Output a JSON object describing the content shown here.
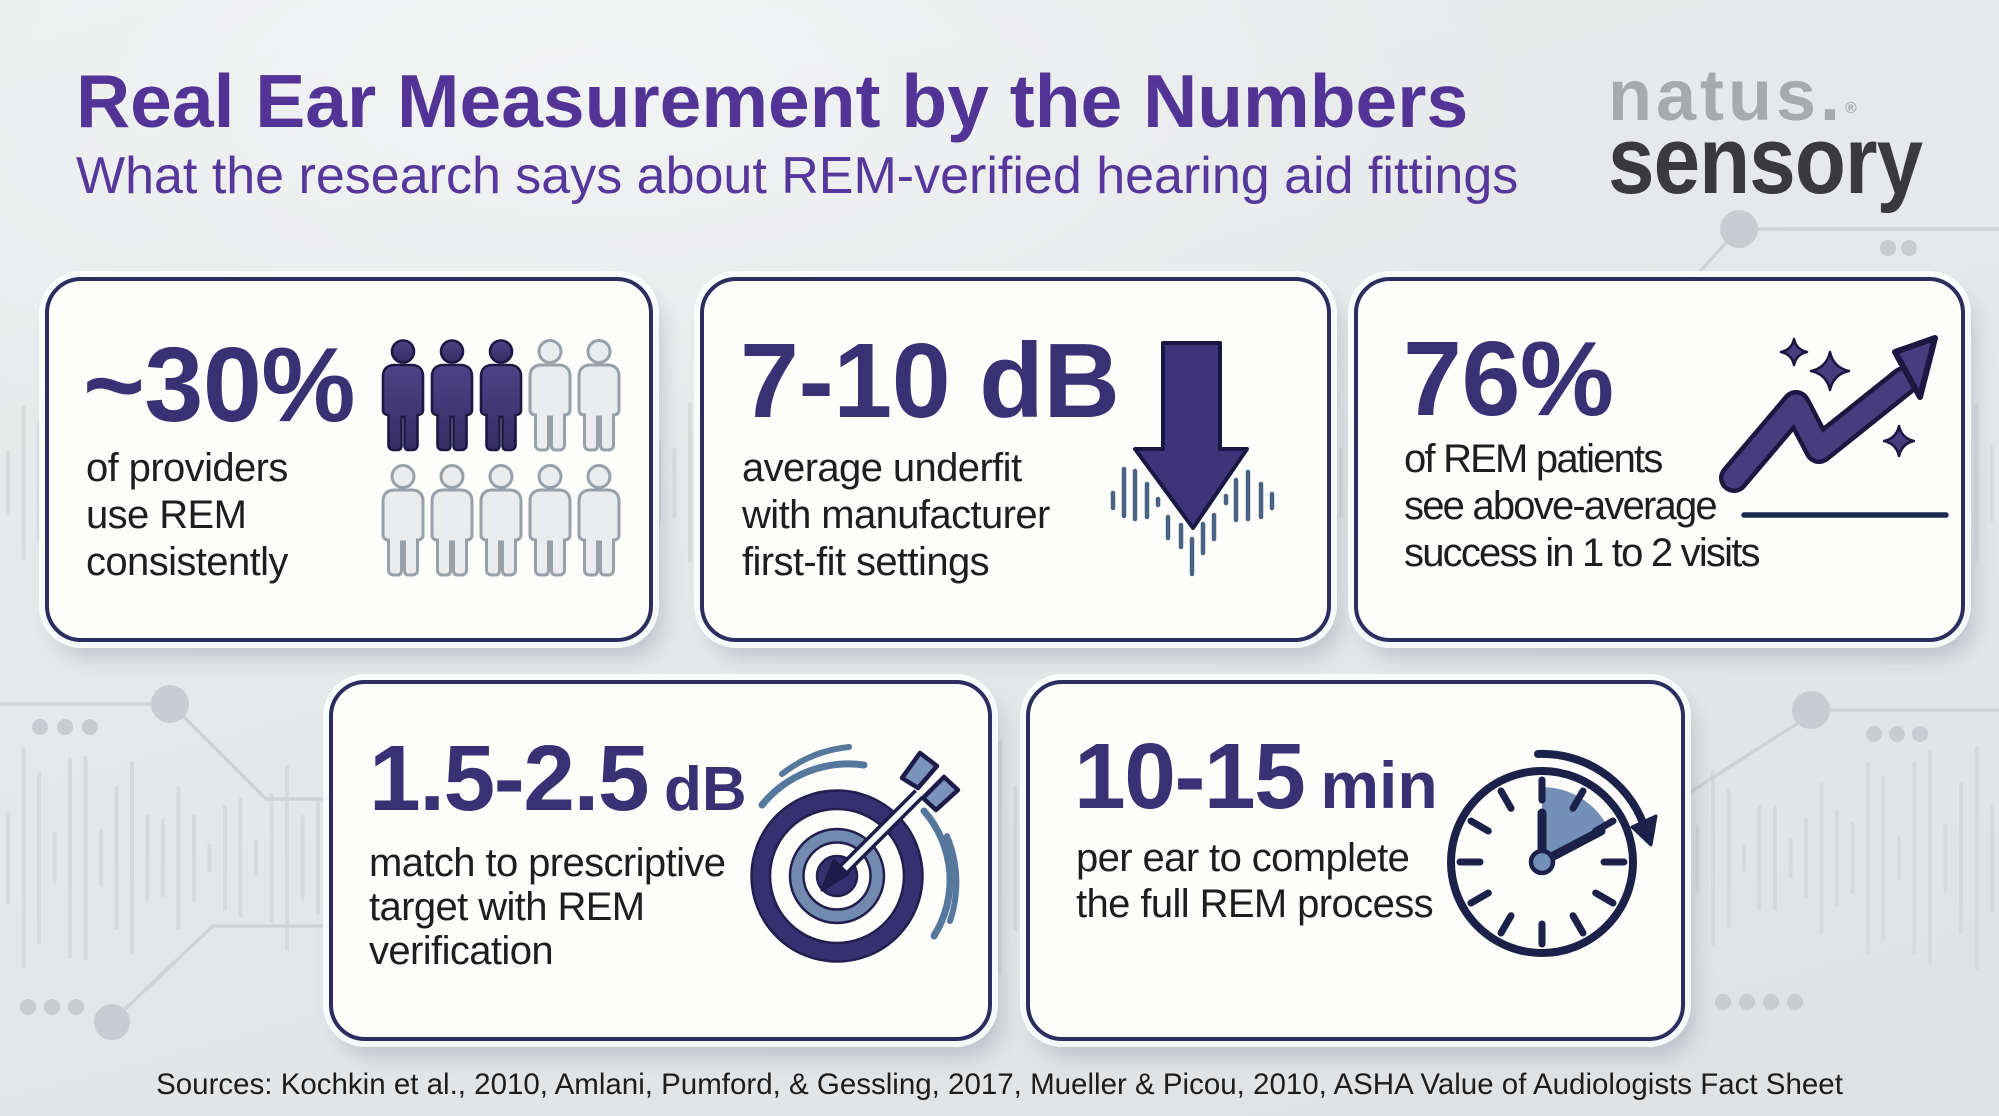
{
  "header": {
    "title": "Real Ear Measurement by the Numbers",
    "subtitle": "What the research says about REM-verified hearing aid fittings"
  },
  "logo": {
    "name": "natus.",
    "registered": "®",
    "division": "sensory"
  },
  "cards": [
    {
      "id": "providers",
      "value": "~30%",
      "unit": "",
      "description": "of providers\nuse REM\nconsistently",
      "icon": "people-grid",
      "people": {
        "total": 10,
        "filled": 3,
        "per_row": 5
      }
    },
    {
      "id": "underfit",
      "value": "7-10 dB",
      "unit": "",
      "description": "average underfit\nwith manufacturer\nfirst-fit settings",
      "icon": "down-arrow-soundwave"
    },
    {
      "id": "success",
      "value": "76%",
      "unit": "",
      "description": "of REM patients\nsee above-average\nsuccess in 1 to 2 visits",
      "icon": "trend-up-arrow"
    },
    {
      "id": "match",
      "value": "1.5-2.5",
      "unit": "dB",
      "description": "match to prescriptive\ntarget with REM\nverification",
      "icon": "bullseye-target"
    },
    {
      "id": "time",
      "value": "10-15",
      "unit": "min",
      "description": "per ear to complete\nthe full REM process",
      "icon": "clock-timer"
    }
  ],
  "footer": {
    "sources": "Sources: Kochkin et al., 2010, Amlani, Pumford, & Gessling, 2017, Mueller & Picou, 2010, ASHA Value of Audiologists Fact Sheet"
  },
  "colors": {
    "accent_purple": "#523496",
    "stat_indigo": "#393173",
    "card_border": "#2d2e5f",
    "steel_blue": "#4a6383",
    "text_dark": "#1e1e1e",
    "background": "#e7e8ea",
    "logo_gray": "#a7a9ac",
    "logo_dark": "#3a3a3c",
    "decoration_gray": "#d6d8da"
  }
}
